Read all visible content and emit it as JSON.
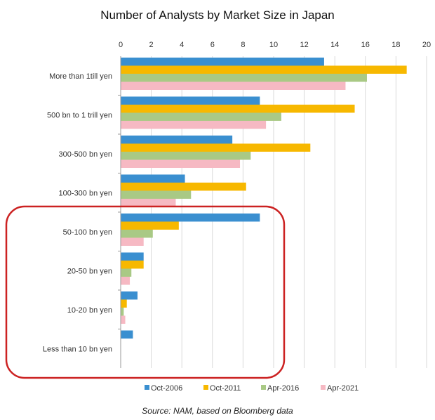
{
  "chart_data": {
    "type": "bar",
    "orientation": "horizontal",
    "title": "Number of Analysts by Market Size in Japan",
    "source": "Source: NAM, based on Bloomberg data",
    "categories": [
      "More than 1till yen",
      "500 bn to 1 trill yen",
      "300-500 bn yen",
      "100-300 bn yen",
      "50-100 bn yen",
      "20-50 bn yen",
      "10-20 bn yen",
      "Less than 10 bn yen"
    ],
    "series": [
      {
        "name": "Oct-2006",
        "color": "#3a8fd0",
        "values": [
          13.3,
          9.1,
          7.3,
          4.2,
          9.1,
          1.5,
          1.1,
          0.8
        ]
      },
      {
        "name": "Oct-2011",
        "color": "#f7b800",
        "values": [
          18.7,
          15.3,
          12.4,
          8.2,
          3.8,
          1.5,
          0.4,
          0.0
        ]
      },
      {
        "name": "Apr-2016",
        "color": "#a9c985",
        "values": [
          16.1,
          10.5,
          8.5,
          4.6,
          2.1,
          0.7,
          0.2,
          0.0
        ]
      },
      {
        "name": "Apr-2021",
        "color": "#f6b9c3",
        "values": [
          14.7,
          9.5,
          7.8,
          3.6,
          1.5,
          0.6,
          0.3,
          0.0
        ]
      }
    ],
    "xlim": [
      0,
      20
    ],
    "xticks": [
      "0",
      "2",
      "4",
      "6",
      "8",
      "10",
      "12",
      "14",
      "16",
      "18",
      "20"
    ],
    "grid": true,
    "legend_position": "bottom",
    "highlight_color": "#cc2222"
  }
}
